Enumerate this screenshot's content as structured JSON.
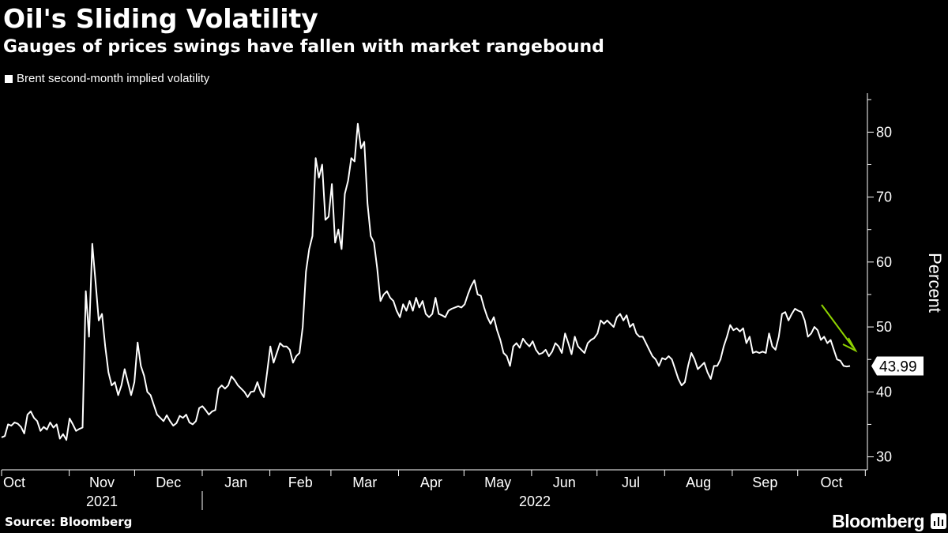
{
  "header": {
    "title": "Oil's Sliding Volatility",
    "subtitle": "Gauges of prices swings have fallen with market rangebound"
  },
  "footer": {
    "source": "Source: Bloomberg",
    "brand": "Bloomberg"
  },
  "colors": {
    "background": "#000000",
    "line": "#ffffff",
    "arrow": "#8fd400"
  },
  "chart_data": {
    "type": "line",
    "title": "Oil's Sliding Volatility",
    "subtitle": "Gauges of prices swings have fallen with market rangebound",
    "xlabel": "",
    "ylabel": "Percent",
    "ylim": [
      28,
      86
    ],
    "yticks": [
      30,
      40,
      50,
      60,
      70,
      80
    ],
    "legend": "top-left",
    "x_month_labels": [
      "Oct",
      "Nov",
      "Dec",
      "Jan",
      "Feb",
      "Mar",
      "Apr",
      "May",
      "Jun",
      "Jul",
      "Aug",
      "Sep",
      "Oct"
    ],
    "year_labels": [
      "2021",
      "2022"
    ],
    "last_value_label": "43.99",
    "series": [
      {
        "name": "Brent second-month implied volatility",
        "x_start": "2021-10-01",
        "x_end": "2022-10-25",
        "values": [
          33.0,
          33.2,
          35.0,
          34.8,
          35.3,
          35.1,
          34.6,
          33.6,
          36.5,
          37.0,
          36.0,
          35.5,
          34.0,
          34.6,
          34.2,
          35.3,
          34.5,
          35.0,
          32.8,
          33.5,
          32.6,
          35.9,
          35.0,
          34.0,
          34.3,
          34.5,
          55.5,
          48.5,
          62.8,
          57.0,
          51.0,
          52.0,
          47.0,
          43.0,
          41.0,
          41.5,
          39.5,
          41.0,
          43.5,
          41.5,
          39.5,
          41.5,
          47.6,
          44.0,
          42.5,
          40.0,
          39.5,
          38.0,
          36.5,
          36.0,
          35.5,
          36.4,
          35.5,
          34.8,
          35.2,
          36.3,
          36.0,
          36.5,
          35.3,
          35.0,
          35.5,
          37.5,
          37.8,
          37.2,
          36.5,
          37.0,
          37.2,
          40.5,
          41.0,
          40.5,
          41.0,
          42.4,
          41.8,
          41.0,
          40.5,
          40.0,
          39.2,
          40.0,
          40.1,
          41.5,
          40.0,
          39.2,
          43.0,
          47.0,
          44.5,
          46.0,
          47.5,
          47.0,
          47.0,
          46.5,
          44.5,
          45.5,
          46.0,
          50.0,
          58.5,
          62.0,
          64.0,
          76.0,
          73.0,
          75.0,
          66.5,
          67.0,
          72.0,
          63.0,
          65.0,
          62.0,
          70.5,
          72.5,
          76.0,
          75.5,
          81.3,
          77.5,
          78.5,
          69.0,
          64.0,
          63.0,
          59.0,
          54.0,
          55.0,
          55.5,
          54.5,
          54.0,
          52.5,
          51.5,
          53.5,
          52.5,
          54.0,
          52.5,
          54.5,
          53.0,
          54.0,
          52.0,
          51.5,
          52.0,
          54.5,
          52.0,
          51.8,
          51.5,
          52.5,
          52.8,
          53.0,
          53.2,
          53.0,
          53.5,
          55.0,
          56.3,
          57.2,
          55.0,
          54.8,
          53.0,
          51.5,
          50.5,
          51.5,
          49.5,
          48.0,
          46.0,
          45.5,
          44.0,
          47.0,
          47.5,
          46.8,
          48.2,
          47.5,
          47.0,
          47.8,
          46.5,
          45.8,
          46.0,
          46.5,
          45.5,
          46.2,
          47.5,
          47.0,
          46.0,
          49.0,
          47.5,
          45.8,
          48.5,
          47.0,
          46.5,
          46.0,
          47.5,
          48.0,
          48.3,
          49.0,
          51.0,
          50.5,
          51.0,
          50.5,
          50.0,
          51.5,
          52.0,
          51.0,
          51.8,
          50.0,
          50.5,
          49.0,
          48.5,
          48.5,
          47.5,
          46.5,
          45.5,
          45.0,
          44.0,
          45.2,
          45.0,
          45.5,
          45.0,
          43.5,
          42.0,
          41.0,
          41.5,
          44.0,
          46.0,
          45.0,
          43.5,
          44.0,
          44.5,
          43.0,
          42.0,
          44.0,
          44.0,
          45.0,
          47.0,
          48.5,
          50.3,
          49.5,
          49.8,
          49.3,
          49.8,
          47.5,
          48.5,
          46.0,
          46.2,
          46.0,
          46.2,
          46.0,
          49.0,
          47.0,
          46.5,
          48.5,
          52.0,
          52.3,
          51.0,
          52.0,
          52.8,
          52.5,
          52.3,
          51.0,
          48.5,
          49.0,
          50.0,
          49.5,
          48.0,
          48.5,
          47.5,
          48.0,
          46.5,
          45.0,
          44.8,
          44.0,
          43.9,
          43.99
        ]
      }
    ]
  }
}
